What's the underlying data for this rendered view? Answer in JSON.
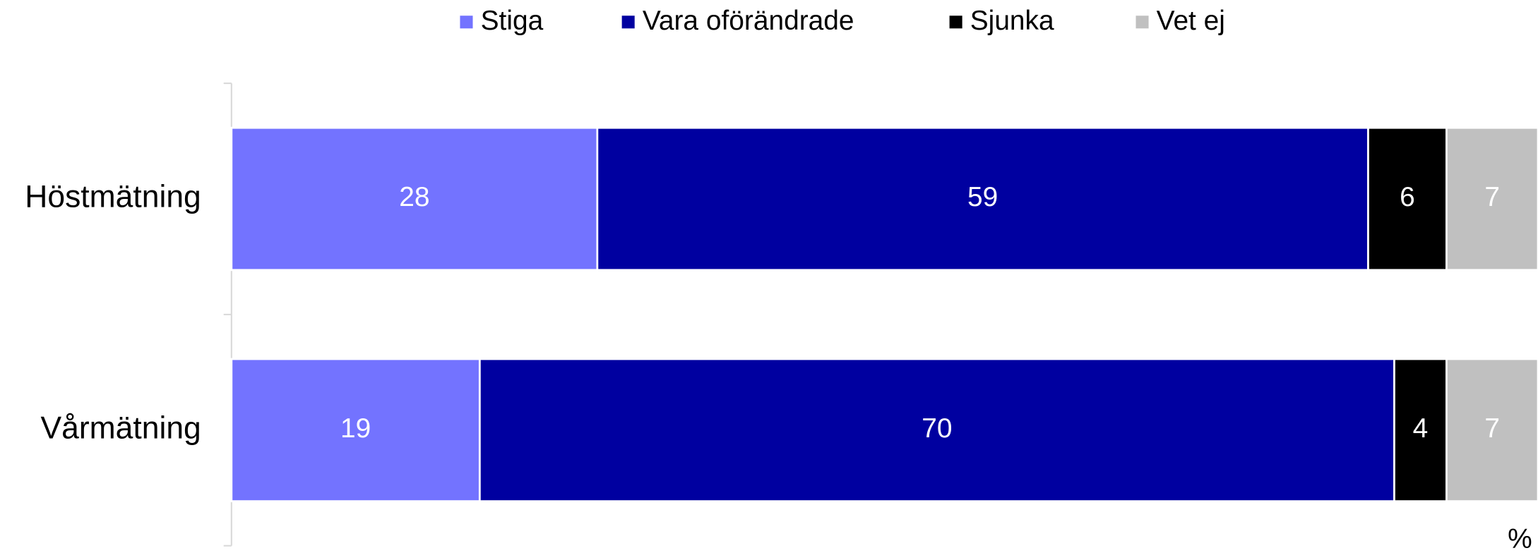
{
  "chart_data": {
    "type": "stacked_bar_horizontal",
    "categories": [
      "Höstmätning",
      "Vårmätning"
    ],
    "series": [
      {
        "name": "Stiga",
        "color": "#7373ff",
        "values": [
          28,
          19
        ]
      },
      {
        "name": "Vara oförändrade",
        "color": "#0000a0",
        "values": [
          59,
          70
        ]
      },
      {
        "name": "Sjunka",
        "color": "#000000",
        "values": [
          6,
          4
        ]
      },
      {
        "name": "Vet ej",
        "color": "#c0c0c0",
        "values": [
          7,
          7
        ]
      }
    ],
    "xlim": [
      0,
      100
    ],
    "x_label": "%",
    "legend": "top"
  }
}
